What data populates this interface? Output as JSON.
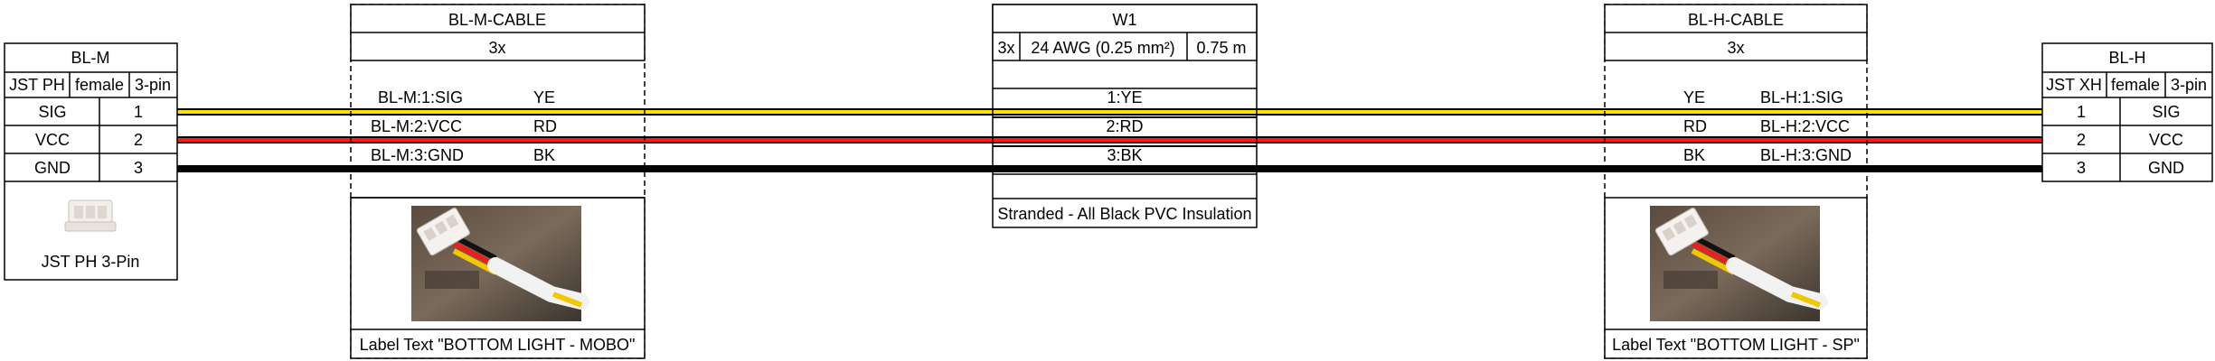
{
  "connectors": {
    "left": {
      "name": "BL-M",
      "type": "JST PH",
      "gender": "female",
      "pincount": "3-pin",
      "pins": [
        {
          "label": "SIG",
          "number": "1"
        },
        {
          "label": "VCC",
          "number": "2"
        },
        {
          "label": "GND",
          "number": "3"
        }
      ],
      "image_caption": "JST PH 3-Pin"
    },
    "right": {
      "name": "BL-H",
      "type": "JST XH",
      "gender": "female",
      "pincount": "3-pin",
      "pins": [
        {
          "label": "SIG",
          "number": "1"
        },
        {
          "label": "VCC",
          "number": "2"
        },
        {
          "label": "GND",
          "number": "3"
        }
      ]
    }
  },
  "cables": {
    "left_bundle": {
      "name": "BL-M-CABLE",
      "count": "3x",
      "wires": [
        {
          "endpoint": "BL-M:1:SIG",
          "color_code": "YE"
        },
        {
          "endpoint": "BL-M:2:VCC",
          "color_code": "RD"
        },
        {
          "endpoint": "BL-M:3:GND",
          "color_code": "BK"
        }
      ],
      "label_text": "Label Text \"BOTTOM LIGHT - MOBO\""
    },
    "main": {
      "name": "W1",
      "count": "3x",
      "gauge": "24 AWG (0.25 mm²)",
      "length": "0.75 m",
      "wires": [
        "1:YE",
        "2:RD",
        "3:BK"
      ],
      "note": "Stranded - All Black PVC Insulation"
    },
    "right_bundle": {
      "name": "BL-H-CABLE",
      "count": "3x",
      "wires": [
        {
          "color_code": "YE",
          "endpoint": "BL-H:1:SIG"
        },
        {
          "color_code": "RD",
          "endpoint": "BL-H:2:VCC"
        },
        {
          "color_code": "BK",
          "endpoint": "BL-H:3:GND"
        }
      ],
      "label_text": "Label Text \"BOTTOM LIGHT - SP\""
    }
  },
  "wire_colors": {
    "YE": "#ffe100",
    "RD": "#ff1a1a",
    "BK": "#000000",
    "outline": "#000000",
    "box_border": "#000000",
    "photo_background": "#6b5a4a",
    "connector_body": "#f4f1ee"
  }
}
